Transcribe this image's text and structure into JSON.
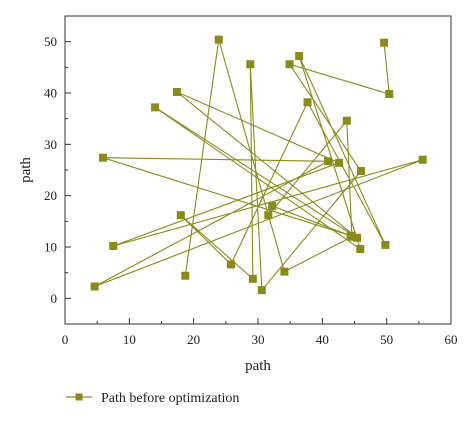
{
  "chart_data": {
    "type": "line",
    "xlabel": "path",
    "ylabel": "path",
    "xlim": [
      0,
      60
    ],
    "ylim": [
      -5,
      55
    ],
    "xticks": [
      0,
      10,
      20,
      30,
      40,
      50,
      60
    ],
    "yticks": [
      0,
      10,
      20,
      30,
      40,
      50
    ],
    "grid": false,
    "legend_position": "bottom-left",
    "color": "#8B8B1A",
    "marker": "square",
    "series": [
      {
        "name": "Path before optimization",
        "points": [
          [
            49.6,
            49.8
          ],
          [
            50.4,
            39.8
          ],
          [
            34.9,
            45.6
          ],
          [
            46.0,
            24.8
          ],
          [
            30.6,
            1.6
          ],
          [
            28.8,
            45.6
          ],
          [
            29.2,
            3.8
          ],
          [
            18.0,
            16.2
          ],
          [
            25.8,
            6.6
          ],
          [
            37.7,
            38.2
          ],
          [
            49.8,
            10.4
          ],
          [
            36.4,
            47.2
          ],
          [
            45.9,
            9.6
          ],
          [
            14.0,
            37.2
          ],
          [
            45.4,
            11.8
          ],
          [
            17.4,
            40.2
          ],
          [
            42.6,
            26.4
          ],
          [
            7.5,
            10.2
          ],
          [
            55.6,
            27.0
          ],
          [
            4.6,
            2.3
          ],
          [
            40.9,
            26.7
          ],
          [
            5.9,
            27.4
          ],
          [
            44.4,
            12.2
          ],
          [
            32.2,
            18.0
          ],
          [
            31.6,
            16.2
          ],
          [
            43.8,
            34.6
          ],
          [
            44.6,
            12.0
          ],
          [
            34.1,
            5.2
          ],
          [
            23.9,
            50.4
          ],
          [
            18.7,
            4.4
          ]
        ]
      }
    ]
  }
}
